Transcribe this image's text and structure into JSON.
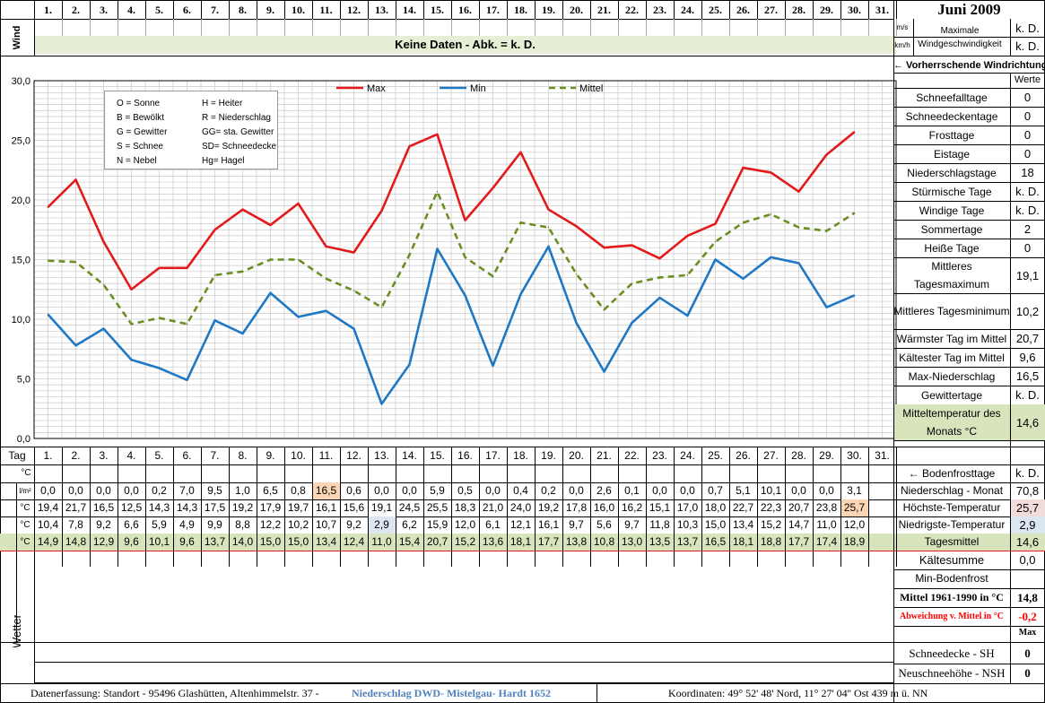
{
  "title": "Juni 2009",
  "days": [
    "1.",
    "2.",
    "3.",
    "4.",
    "5.",
    "6.",
    "7.",
    "8.",
    "9.",
    "10.",
    "11.",
    "12.",
    "13.",
    "14.",
    "15.",
    "16.",
    "17.",
    "18.",
    "19.",
    "20.",
    "21.",
    "22.",
    "23.",
    "24.",
    "25.",
    "26.",
    "27.",
    "28.",
    "29.",
    "30.",
    "31."
  ],
  "wind": {
    "side_label": "Wind",
    "unit_ms": "m/s",
    "unit_kmh": "km/h",
    "no_data": "Keine Daten - Abk. = k. D.",
    "max_label": "Maximale Windgeschwindigkeit",
    "max_ms": "k. D.",
    "max_kmh": "k. D.",
    "direction_label": "← Vorherrschende Windrichtung"
  },
  "legend_weather": [
    [
      "O = Sonne",
      "H = Heiter"
    ],
    [
      "B = Bewölkt",
      "R = Niederschlag"
    ],
    [
      "G = Gewitter",
      "GG= sta. Gewitter"
    ],
    [
      "S = Schnee",
      "SD= Schneedecke"
    ],
    [
      "N = Nebel",
      "Hg= Hagel"
    ]
  ],
  "stats_header": "Werte",
  "stats": [
    {
      "label": "Schneefalltage",
      "value": "0"
    },
    {
      "label": "Schneedeckentage",
      "value": "0"
    },
    {
      "label": "Frosttage",
      "value": "0"
    },
    {
      "label": "Eistage",
      "value": "0"
    },
    {
      "label": "Niederschlagstage",
      "value": "18"
    },
    {
      "label": "Stürmische Tage",
      "value": "k. D."
    },
    {
      "label": "Windige Tage",
      "value": "k. D."
    },
    {
      "label": "Sommertage",
      "value": "2"
    },
    {
      "label": "Heiße Tage",
      "value": "0"
    },
    {
      "label": "Mittleres Tagesmaximum",
      "value": "19,1"
    },
    {
      "label": "Mittleres Tagesminimum",
      "value": "10,2"
    },
    {
      "label": "Wärmster Tag im Mittel",
      "value": "20,7"
    },
    {
      "label": "Kältester Tag im Mittel",
      "value": "9,6"
    },
    {
      "label": "Max-Niederschlag",
      "value": "16,5"
    },
    {
      "label": "Gewittertage",
      "value": "k. D."
    },
    {
      "label": "Mitteltemperatur des Monats °C",
      "value": "14,6"
    }
  ],
  "table": {
    "tag_label": "Tag",
    "unit_c": "°C",
    "unit_precip": "l/m²",
    "bodenfrost_label": "← Bodenfrosttage",
    "bodenfrost_value": "k. D.",
    "rows": [
      {
        "unit": "l/m²",
        "label": "Niederschlag - Monat",
        "total": "70,8",
        "values": [
          "0,0",
          "0,0",
          "0,0",
          "0,0",
          "0,2",
          "7,0",
          "9,5",
          "1,0",
          "6,5",
          "0,8",
          "16,5",
          "0,6",
          "0,0",
          "0,0",
          "5,9",
          "0,5",
          "0,0",
          "0,4",
          "0,2",
          "0,0",
          "2,6",
          "0,1",
          "0,0",
          "0,0",
          "0,7",
          "5,1",
          "10,1",
          "0,0",
          "0,0",
          "3,1",
          ""
        ]
      },
      {
        "unit": "°C",
        "label": "Höchste-Temperatur",
        "total": "25,7",
        "values": [
          "19,4",
          "21,7",
          "16,5",
          "12,5",
          "14,3",
          "14,3",
          "17,5",
          "19,2",
          "17,9",
          "19,7",
          "16,1",
          "15,6",
          "19,1",
          "24,5",
          "25,5",
          "18,3",
          "21,0",
          "24,0",
          "19,2",
          "17,8",
          "16,0",
          "16,2",
          "15,1",
          "17,0",
          "18,0",
          "22,7",
          "22,3",
          "20,7",
          "23,8",
          "25,7",
          ""
        ]
      },
      {
        "unit": "°C",
        "label": "Niedrigste-Temperatur",
        "total": "2,9",
        "values": [
          "10,4",
          "7,8",
          "9,2",
          "6,6",
          "5,9",
          "4,9",
          "9,9",
          "8,8",
          "12,2",
          "10,2",
          "10,7",
          "9,2",
          "2,9",
          "6,2",
          "15,9",
          "12,0",
          "6,1",
          "12,1",
          "16,1",
          "9,7",
          "5,6",
          "9,7",
          "11,8",
          "10,3",
          "15,0",
          "13,4",
          "15,2",
          "14,7",
          "11,0",
          "12,0",
          ""
        ]
      },
      {
        "unit": "°C",
        "label": "Tagesmittel",
        "total": "14,6",
        "values": [
          "14,9",
          "14,8",
          "12,9",
          "9,6",
          "10,1",
          "9,6",
          "13,7",
          "14,0",
          "15,0",
          "15,0",
          "13,4",
          "12,4",
          "11,0",
          "15,4",
          "20,7",
          "15,2",
          "13,6",
          "18,1",
          "17,7",
          "13,8",
          "10,8",
          "13,0",
          "13,5",
          "13,7",
          "16,5",
          "18,1",
          "18,8",
          "17,7",
          "17,4",
          "18,9",
          ""
        ]
      }
    ],
    "kaeltesumme_label": "Kältesumme",
    "kaeltesumme_value": "0,0",
    "min_bodenfrost_label": "Min-Bodenfrost",
    "mittel_label": "Mittel 1961-1990 in °C",
    "mittel_value": "14,8",
    "abweichung_label": "Abweichung v. Mittel in °C",
    "abweichung_value": "-0,2",
    "max_label": "Max",
    "wetter_label": "Wetter",
    "schneedecke_label": "Schneedecke -  SH",
    "schneedecke_value": "0",
    "neuschnee_label": "Neuschneehöhe - NSH",
    "neuschnee_value": "0"
  },
  "footer": {
    "left": "Datenerfassung:  Standort -  95496  Glashütten, Altenhimmelstr. 37 -",
    "highlight": "Niederschlag DWD- Mistelgau- Hardt 1652",
    "right": "Koordinaten:  49° 52' 48' Nord,   11° 27' 04'' Ost   439 m ü. NN"
  },
  "colors": {
    "max": "#e31a1c",
    "min": "#1f78c4",
    "mittel": "#6b8e23",
    "header_bg": "#e6eed6",
    "peach": "#fcd5b4",
    "light_blue": "#dce6f1",
    "olive_bg": "#d8e4bc",
    "red_text": "#ff0000",
    "pink_bg": "#f2dcdb"
  },
  "chart_data": {
    "type": "line",
    "x": [
      1,
      2,
      3,
      4,
      5,
      6,
      7,
      8,
      9,
      10,
      11,
      12,
      13,
      14,
      15,
      16,
      17,
      18,
      19,
      20,
      21,
      22,
      23,
      24,
      25,
      26,
      27,
      28,
      29,
      30
    ],
    "y_ticks": [
      "0,0",
      "5,0",
      "10,0",
      "15,0",
      "20,0",
      "25,0",
      "30,0"
    ],
    "ylim": [
      0,
      30
    ],
    "series": [
      {
        "name": "Max",
        "values": [
          19.4,
          21.7,
          16.5,
          12.5,
          14.3,
          14.3,
          17.5,
          19.2,
          17.9,
          19.7,
          16.1,
          15.6,
          19.1,
          24.5,
          25.5,
          18.3,
          21.0,
          24.0,
          19.2,
          17.8,
          16.0,
          16.2,
          15.1,
          17.0,
          18.0,
          22.7,
          22.3,
          20.7,
          23.8,
          25.7
        ]
      },
      {
        "name": "Min",
        "values": [
          10.4,
          7.8,
          9.2,
          6.6,
          5.9,
          4.9,
          9.9,
          8.8,
          12.2,
          10.2,
          10.7,
          9.2,
          2.9,
          6.2,
          15.9,
          12.0,
          6.1,
          12.1,
          16.1,
          9.7,
          5.6,
          9.7,
          11.8,
          10.3,
          15.0,
          13.4,
          15.2,
          14.7,
          11.0,
          12.0
        ]
      },
      {
        "name": "Mittel",
        "values": [
          14.9,
          14.8,
          12.9,
          9.6,
          10.1,
          9.6,
          13.7,
          14.0,
          15.0,
          15.0,
          13.4,
          12.4,
          11.0,
          15.4,
          20.7,
          15.2,
          13.6,
          18.1,
          17.7,
          13.8,
          10.8,
          13.0,
          13.5,
          13.7,
          16.5,
          18.1,
          18.8,
          17.7,
          17.4,
          18.9
        ]
      }
    ],
    "grid": true,
    "legend": "top"
  }
}
